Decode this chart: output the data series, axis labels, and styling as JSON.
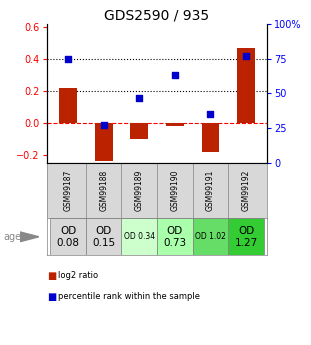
{
  "title": "GDS2590 / 935",
  "samples": [
    "GSM99187",
    "GSM99188",
    "GSM99189",
    "GSM99190",
    "GSM99191",
    "GSM99192"
  ],
  "log2_ratio": [
    0.22,
    -0.24,
    -0.1,
    -0.02,
    -0.18,
    0.47
  ],
  "percentile_rank_pct": [
    75,
    27,
    47,
    63,
    35,
    77
  ],
  "ylim_left": [
    -0.25,
    0.62
  ],
  "ylim_right": [
    0,
    100
  ],
  "yticks_left": [
    -0.2,
    0.0,
    0.2,
    0.4,
    0.6
  ],
  "yticks_right": [
    0,
    25,
    50,
    75,
    100
  ],
  "hlines": [
    0.4,
    0.2,
    0.0
  ],
  "hline_styles": [
    "dotted",
    "dotted",
    "dashed"
  ],
  "hline_colors": [
    "black",
    "black",
    "red"
  ],
  "bar_color": "#bb2200",
  "dot_color": "#0000cc",
  "age_label": "age",
  "od_values": [
    "OD\n0.08",
    "OD\n0.15",
    "OD 0.34",
    "OD\n0.73",
    "OD 1.02",
    "OD\n1.27"
  ],
  "od_big": [
    true,
    true,
    false,
    true,
    false,
    true
  ],
  "cell_colors": [
    "#d8d8d8",
    "#d8d8d8",
    "#ccffcc",
    "#aaffaa",
    "#66dd66",
    "#33cc33"
  ],
  "legend_labels": [
    "log2 ratio",
    "percentile rank within the sample"
  ],
  "title_fontsize": 10,
  "tick_fontsize": 7,
  "bar_width": 0.5
}
